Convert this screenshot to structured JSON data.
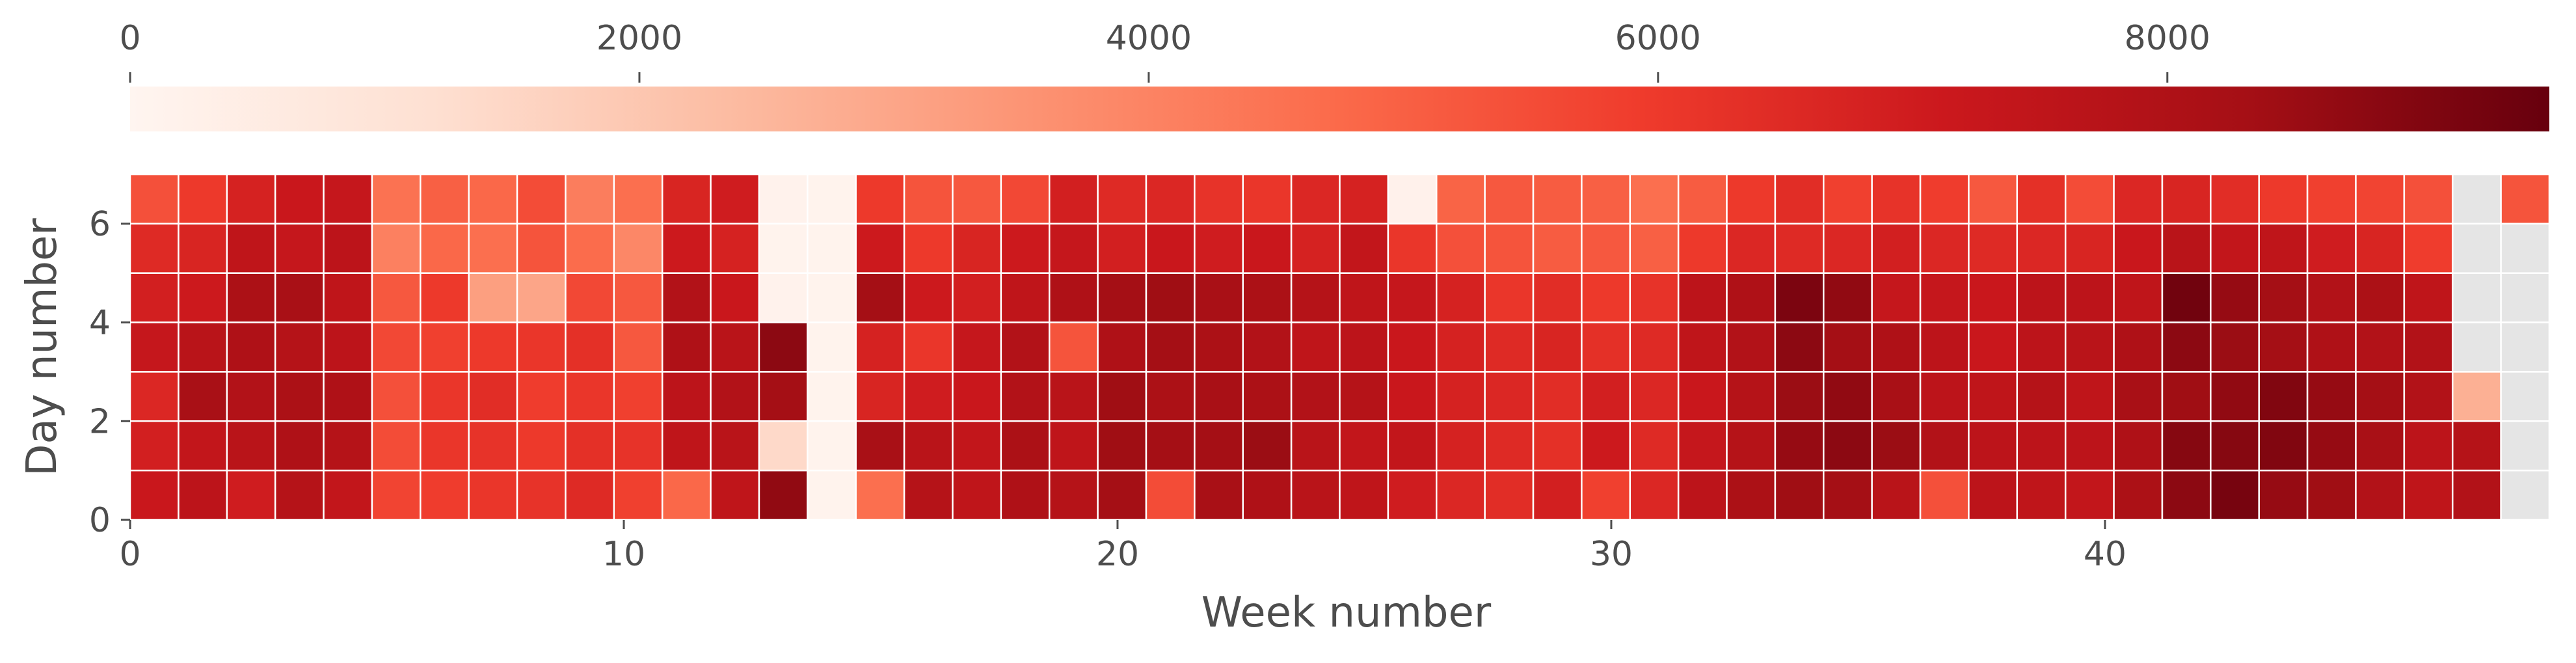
{
  "chart_data": {
    "type": "heatmap",
    "title": "",
    "xlabel": "Week number",
    "ylabel": "Day number",
    "xlim": [
      0,
      49
    ],
    "ylim": [
      0,
      7
    ],
    "x_ticks": [
      0,
      10,
      20,
      30,
      40
    ],
    "y_ticks": [
      0,
      2,
      4,
      6
    ],
    "grid": true,
    "cmap": "Reds",
    "missing_color": "#e5e5e5",
    "cell_border_color": "#ffffff",
    "colorbar": {
      "placement": "top",
      "vmin": 0,
      "vmax": 9500,
      "ticks": [
        0,
        2000,
        4000,
        6000,
        8000
      ],
      "colors": [
        "#fff5f0",
        "#fee0d2",
        "#fcbba1",
        "#fc9272",
        "#fb6a4a",
        "#ef3b2c",
        "#cb181d",
        "#a50f15",
        "#67000d"
      ]
    },
    "rows_day_numbers": [
      6,
      5,
      4,
      3,
      2,
      1,
      0
    ],
    "values": [
      [
        5400,
        6000,
        6800,
        7200,
        7300,
        4500,
        5000,
        4800,
        5500,
        4200,
        4600,
        6700,
        7000,
        150,
        100,
        6000,
        5300,
        5200,
        5600,
        6900,
        6500,
        6600,
        6200,
        6100,
        6600,
        6800,
        200,
        4900,
        5200,
        5100,
        5000,
        4600,
        5100,
        6000,
        6400,
        5800,
        6200,
        5900,
        5200,
        6300,
        5500,
        6600,
        6700,
        6400,
        6000,
        5800,
        5700,
        5400,
        null,
        5300
      ],
      [
        6500,
        6700,
        7500,
        7300,
        7600,
        4100,
        4800,
        4600,
        5300,
        4700,
        3900,
        7100,
        6800,
        120,
        100,
        7100,
        6000,
        6700,
        7100,
        7300,
        6900,
        7200,
        7000,
        7200,
        6800,
        7400,
        6100,
        5400,
        5300,
        5100,
        5200,
        5000,
        6000,
        6600,
        6500,
        6600,
        6900,
        6600,
        6500,
        6600,
        6700,
        7200,
        7700,
        7400,
        7500,
        7000,
        6700,
        5900,
        null,
        null
      ],
      [
        6900,
        7100,
        8100,
        8200,
        7500,
        5200,
        6000,
        3200,
        3000,
        5600,
        5200,
        7900,
        7200,
        150,
        100,
        8300,
        7100,
        6900,
        7500,
        8000,
        8300,
        8400,
        8200,
        8100,
        7800,
        7500,
        7300,
        6800,
        6100,
        6400,
        6000,
        6200,
        7600,
        8000,
        9100,
        8700,
        7300,
        7300,
        7200,
        7600,
        7600,
        7500,
        9300,
        8600,
        8300,
        7900,
        8100,
        7500,
        null,
        null
      ],
      [
        7300,
        7700,
        8000,
        7800,
        7600,
        5600,
        5800,
        6000,
        6100,
        6300,
        5200,
        8000,
        7700,
        8800,
        100,
        6800,
        6100,
        7300,
        7900,
        5300,
        8000,
        8300,
        8100,
        7900,
        7500,
        7600,
        7200,
        6800,
        6500,
        6700,
        6300,
        6500,
        7500,
        7900,
        8800,
        8300,
        8000,
        7600,
        7200,
        7600,
        7700,
        8000,
        8800,
        8500,
        8300,
        8000,
        7900,
        7900,
        null,
        null
      ],
      [
        6600,
        8200,
        7900,
        8100,
        8000,
        5400,
        6100,
        6400,
        5900,
        6100,
        5800,
        7600,
        7900,
        8300,
        100,
        6700,
        7000,
        7200,
        7900,
        7700,
        8400,
        8100,
        8200,
        8100,
        7900,
        7800,
        7200,
        6800,
        6600,
        6400,
        6900,
        6600,
        7200,
        7800,
        8500,
        8700,
        8200,
        7600,
        7500,
        7800,
        7500,
        8200,
        8400,
        8700,
        9000,
        8600,
        8300,
        7900,
        2700,
        null
      ],
      [
        6900,
        7400,
        7700,
        8000,
        7800,
        5500,
        6100,
        6200,
        6000,
        6300,
        6200,
        7500,
        7700,
        1400,
        100,
        8200,
        7700,
        7400,
        8100,
        7500,
        8400,
        8300,
        8300,
        8500,
        7700,
        7400,
        7400,
        6800,
        6500,
        6300,
        7100,
        6500,
        7300,
        7800,
        8600,
        8800,
        8500,
        7900,
        7600,
        7600,
        7600,
        8000,
        8900,
        8900,
        9000,
        8600,
        8200,
        7600,
        7800,
        null
      ],
      [
        7200,
        7600,
        7000,
        7800,
        7400,
        5700,
        5900,
        6100,
        6200,
        6500,
        5800,
        4800,
        7500,
        8700,
        100,
        4600,
        7800,
        7500,
        8000,
        7800,
        8300,
        5500,
        8200,
        8000,
        7700,
        7500,
        7000,
        6600,
        6400,
        6900,
        5800,
        6600,
        7600,
        8100,
        8400,
        8300,
        7700,
        5400,
        7600,
        7500,
        7400,
        8100,
        8800,
        9200,
        8600,
        8400,
        7900,
        7500,
        7900,
        null
      ]
    ]
  }
}
